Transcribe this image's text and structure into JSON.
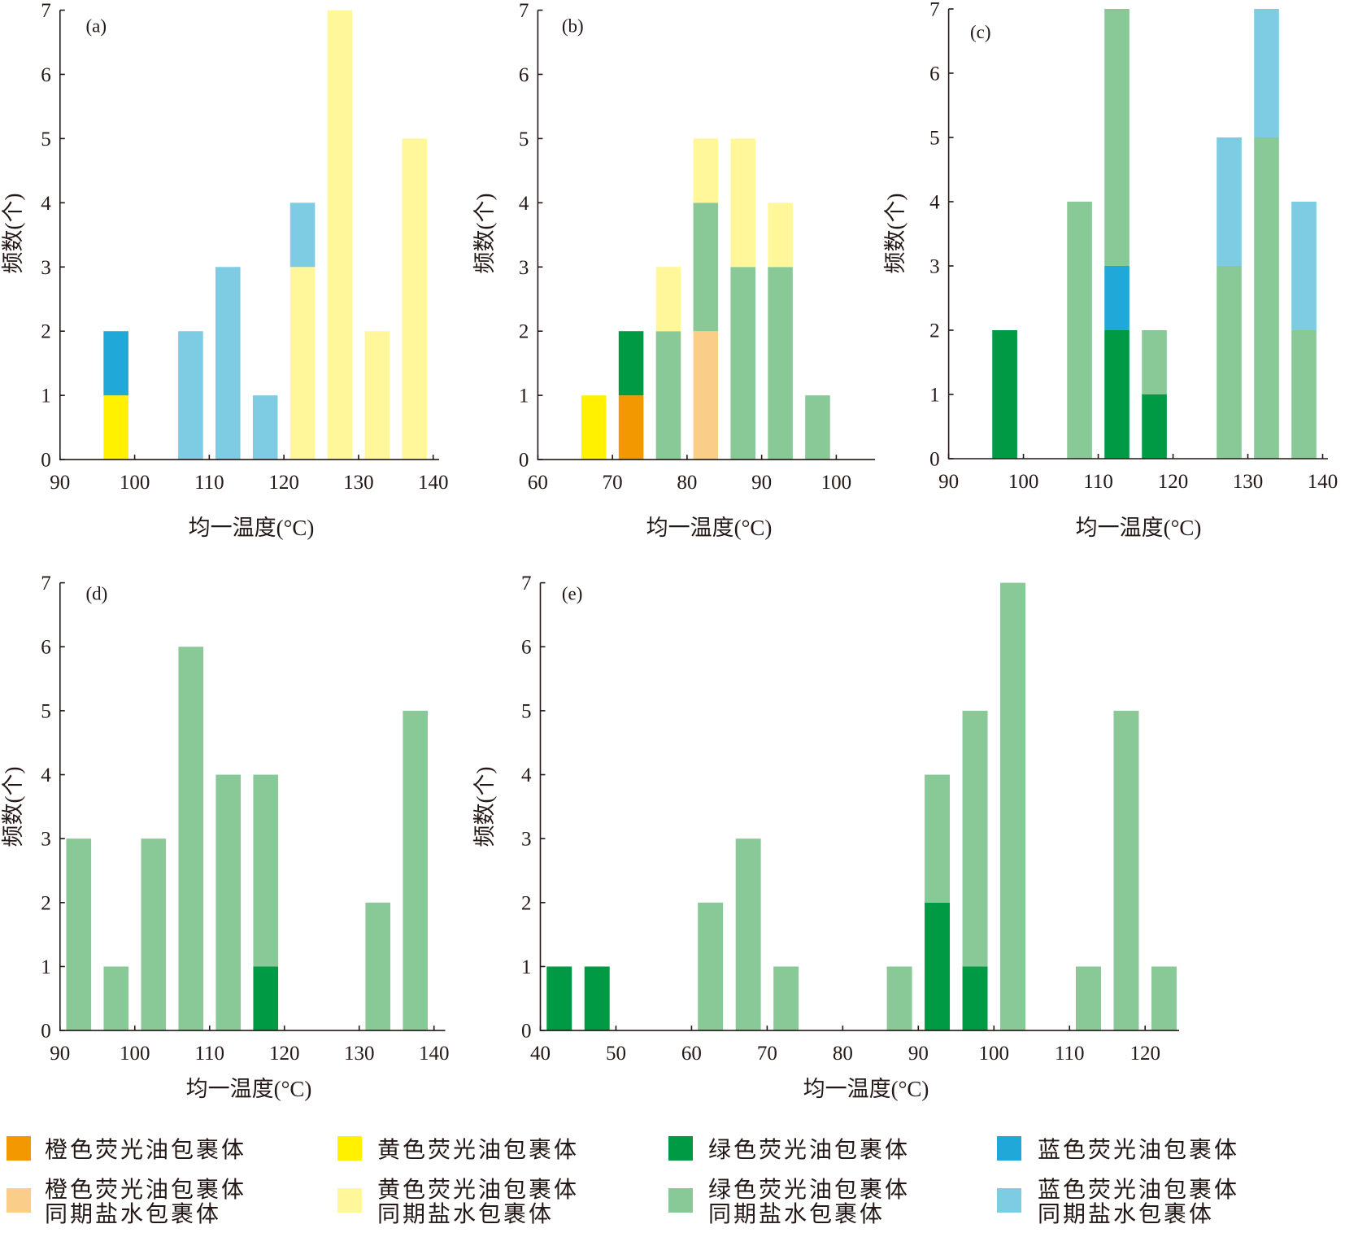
{
  "legend": {
    "items": [
      {
        "lines": [
          "橙色荧光油包裹体"
        ],
        "color": "#F39800"
      },
      {
        "lines": [
          "黄色荧光油包裹体"
        ],
        "color": "#FFF100"
      },
      {
        "lines": [
          "绿色荧光油包裹体"
        ],
        "color": "#009944"
      },
      {
        "lines": [
          "蓝色荧光油包裹体"
        ],
        "color": "#1FA8D8"
      },
      {
        "lines": [
          "橙色荧光油包裹体",
          "同期盐水包裹体"
        ],
        "color": "#FACD89"
      },
      {
        "lines": [
          "黄色荧光油包裹体",
          "同期盐水包裹体"
        ],
        "color": "#FFF799"
      },
      {
        "lines": [
          "绿色荧光油包裹体",
          "同期盐水包裹体"
        ],
        "color": "#89C997"
      },
      {
        "lines": [
          "蓝色荧光油包裹体",
          "同期盐水包裹体"
        ],
        "color": "#7ECBE4"
      }
    ]
  },
  "chart_data": [
    {
      "label": "(a)",
      "type": "bar",
      "stacked": true,
      "xlabel": "均一温度(°C)",
      "ylabel": "频数(个)",
      "xlim": [
        90,
        140.8
      ],
      "ylim": [
        0,
        7
      ],
      "xticks": [
        90,
        100,
        110,
        120,
        130,
        140
      ],
      "yticks": [
        0,
        1,
        2,
        3,
        4,
        5,
        6,
        7
      ],
      "x": [
        97.5,
        107.5,
        112.5,
        117.5,
        122.5,
        127.5,
        132.5,
        137.5
      ],
      "series": [
        {
          "legend_item": 1,
          "values": [
            1,
            0,
            0,
            0,
            0,
            0,
            0,
            0
          ]
        },
        {
          "legend_item": 3,
          "values": [
            1,
            0,
            0,
            0,
            0,
            0,
            0,
            0
          ]
        },
        {
          "legend_item": 5,
          "values": [
            0,
            0,
            0,
            0,
            3,
            7,
            2,
            5
          ]
        },
        {
          "legend_item": 7,
          "values": [
            0,
            2,
            3,
            1,
            1,
            0,
            0,
            0
          ]
        }
      ]
    },
    {
      "label": "(b)",
      "type": "bar",
      "stacked": true,
      "xlabel": "均一温度(°C)",
      "ylabel": "频数(个)",
      "xlim": [
        60,
        105.2
      ],
      "ylim": [
        0,
        7
      ],
      "xticks": [
        60,
        70,
        80,
        90,
        100
      ],
      "yticks": [
        0,
        1,
        2,
        3,
        4,
        5,
        6,
        7
      ],
      "x": [
        67.5,
        72.5,
        77.5,
        82.5,
        87.5,
        92.5,
        97.5
      ],
      "series": [
        {
          "legend_item": 0,
          "values": [
            0,
            1,
            0,
            0,
            0,
            0,
            0
          ]
        },
        {
          "legend_item": 1,
          "values": [
            1,
            0,
            0,
            0,
            0,
            0,
            0
          ]
        },
        {
          "legend_item": 2,
          "values": [
            0,
            1,
            0,
            0,
            0,
            0,
            0
          ]
        },
        {
          "legend_item": 4,
          "values": [
            0,
            0,
            0,
            2,
            0,
            0,
            0
          ]
        },
        {
          "legend_item": 6,
          "values": [
            0,
            0,
            2,
            2,
            3,
            3,
            1
          ]
        },
        {
          "legend_item": 5,
          "values": [
            0,
            0,
            1,
            1,
            2,
            1,
            0
          ]
        }
      ]
    },
    {
      "label": "(c)",
      "type": "bar",
      "stacked": true,
      "xlabel": "均一温度(°C)",
      "ylabel": "频数(个)",
      "xlim": [
        90,
        140.7
      ],
      "ylim": [
        0,
        7
      ],
      "xticks": [
        90,
        100,
        110,
        120,
        130,
        140
      ],
      "yticks": [
        0,
        1,
        2,
        3,
        4,
        5,
        6,
        7
      ],
      "x": [
        97.5,
        107.5,
        112.5,
        117.5,
        127.5,
        132.5,
        137.5
      ],
      "series": [
        {
          "legend_item": 2,
          "values": [
            2,
            0,
            2,
            1,
            0,
            0,
            0
          ]
        },
        {
          "legend_item": 3,
          "values": [
            0,
            0,
            1,
            0,
            0,
            0,
            0
          ]
        },
        {
          "legend_item": 6,
          "values": [
            0,
            4,
            4,
            1,
            3,
            5,
            2
          ]
        },
        {
          "legend_item": 7,
          "values": [
            0,
            0,
            0,
            0,
            2,
            2,
            2
          ]
        }
      ]
    },
    {
      "label": "(d)",
      "type": "bar",
      "stacked": true,
      "xlabel": "均一温度(°C)",
      "ylabel": "频数(个)",
      "xlim": [
        90,
        141.5
      ],
      "ylim": [
        0,
        7
      ],
      "xticks": [
        90,
        100,
        110,
        120,
        130,
        140
      ],
      "yticks": [
        0,
        1,
        2,
        3,
        4,
        5,
        6,
        7
      ],
      "x": [
        92.5,
        97.5,
        102.5,
        107.5,
        112.5,
        117.5,
        132.5,
        137.5
      ],
      "series": [
        {
          "legend_item": 2,
          "values": [
            0,
            0,
            0,
            0,
            0,
            1,
            0,
            0
          ]
        },
        {
          "legend_item": 6,
          "values": [
            3,
            1,
            3,
            6,
            4,
            3,
            2,
            5
          ]
        }
      ]
    },
    {
      "label": "(e)",
      "type": "bar",
      "stacked": true,
      "xlabel": "均一温度(°C)",
      "ylabel": "频数(个)",
      "xlim": [
        40,
        124.5
      ],
      "ylim": [
        0,
        7
      ],
      "xticks": [
        40,
        50,
        60,
        70,
        80,
        90,
        100,
        110,
        120
      ],
      "yticks": [
        0,
        1,
        2,
        3,
        4,
        5,
        6,
        7
      ],
      "x": [
        42.5,
        47.5,
        62.5,
        67.5,
        72.5,
        87.5,
        92.5,
        97.5,
        102.5,
        112.5,
        117.5,
        122.5
      ],
      "series": [
        {
          "legend_item": 2,
          "values": [
            1,
            1,
            0,
            0,
            0,
            0,
            2,
            1,
            0,
            0,
            0,
            0
          ]
        },
        {
          "legend_item": 6,
          "values": [
            0,
            0,
            2,
            3,
            1,
            1,
            2,
            4,
            7,
            1,
            5,
            1
          ]
        }
      ]
    }
  ]
}
